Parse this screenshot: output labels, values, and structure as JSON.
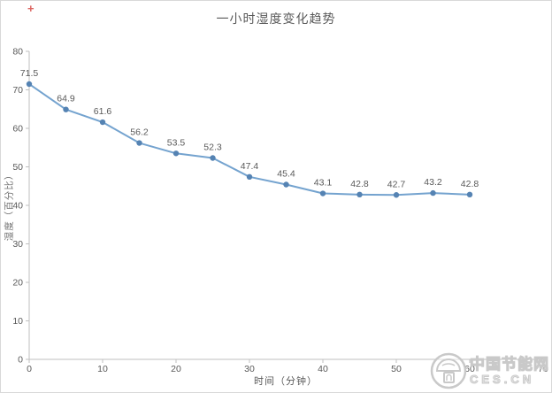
{
  "page": {
    "title": "一小时湿度变化趋势",
    "red_mark": "+"
  },
  "chart_data": {
    "type": "line",
    "title": "一小时湿度变化趋势",
    "xlabel": "时间（分钟）",
    "ylabel": "湿度（百分比）",
    "x": [
      0,
      5,
      10,
      15,
      20,
      25,
      30,
      35,
      40,
      45,
      50,
      55,
      60
    ],
    "values": [
      71.5,
      64.9,
      61.6,
      56.2,
      53.5,
      52.3,
      47.4,
      45.4,
      43.1,
      42.8,
      42.7,
      43.2,
      42.8
    ],
    "xlim": [
      0,
      70
    ],
    "ylim": [
      0,
      80
    ],
    "x_ticks": [
      0,
      10,
      20,
      30,
      40,
      50,
      60,
      70
    ],
    "y_ticks": [
      0,
      10,
      20,
      30,
      40,
      50,
      60,
      70,
      80
    ],
    "grid": false,
    "legend": "none",
    "data_labels": true,
    "colors": {
      "line": "#74A3CF",
      "marker": "#5583B3",
      "axis": "#BFBFBF",
      "tick_label": "#595959",
      "data_label": "#595959",
      "title": "#595959",
      "axis_title": "#707070"
    }
  },
  "watermark": {
    "line1": "中国节能网",
    "line2": "CES.CN"
  }
}
